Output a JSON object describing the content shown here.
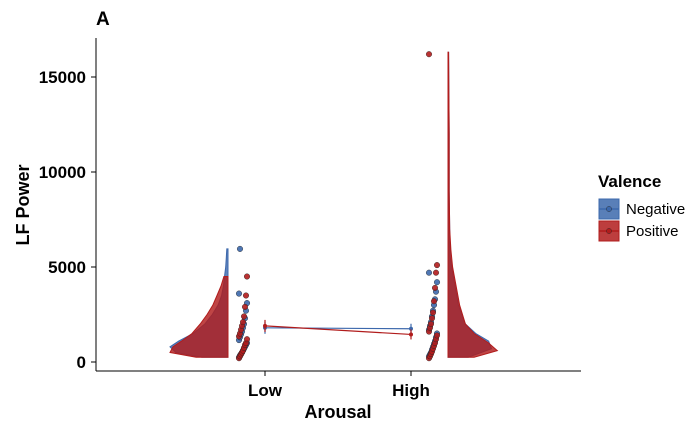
{
  "chart_data": {
    "type": "raincloud",
    "panel_tag": "A",
    "xlabel": "Arousal",
    "ylabel": "LF Power",
    "categories": [
      "Low",
      "High"
    ],
    "ylim": [
      -300,
      17000
    ],
    "yticks": [
      0,
      5000,
      10000,
      15000
    ],
    "ytick_labels": [
      "0",
      "5000",
      "10000",
      "15000"
    ],
    "grid": false,
    "legend": {
      "title": "Valence",
      "placement": "right"
    },
    "series": [
      {
        "name": "Negative",
        "color": "#3C68AC",
        "means": [
          1800,
          1750
        ],
        "points": {
          "Low": [
            250,
            350,
            420,
            500,
            600,
            700,
            800,
            900,
            1000,
            1150,
            1300,
            1450,
            1600,
            1800,
            2000,
            2300,
            2700,
            3100,
            3600,
            5950
          ],
          "High": [
            300,
            400,
            500,
            650,
            800,
            950,
            1100,
            1300,
            1500,
            1700,
            1900,
            2100,
            2400,
            2700,
            3000,
            3300,
            3700,
            4200,
            4700
          ]
        },
        "density": {
          "Low": [
            [
              250,
              0.45
            ],
            [
              500,
              0.9
            ],
            [
              800,
              1.0
            ],
            [
              1100,
              0.85
            ],
            [
              1500,
              0.6
            ],
            [
              2000,
              0.4
            ],
            [
              2500,
              0.27
            ],
            [
              3000,
              0.17
            ],
            [
              3500,
              0.11
            ],
            [
              4000,
              0.08
            ],
            [
              4500,
              0.06
            ],
            [
              5000,
              0.04
            ],
            [
              5500,
              0.03
            ],
            [
              5950,
              0.02
            ]
          ],
          "High": [
            [
              250,
              0.35
            ],
            [
              700,
              0.75
            ],
            [
              1100,
              0.7
            ],
            [
              1500,
              0.48
            ],
            [
              2000,
              0.3
            ],
            [
              3000,
              0.18
            ],
            [
              4000,
              0.12
            ],
            [
              4900,
              0.07
            ],
            [
              5500,
              0.04
            ],
            [
              7000,
              0.03
            ],
            [
              9000,
              0.02
            ],
            [
              12000,
              0.02
            ],
            [
              14000,
              0.015
            ],
            [
              16300,
              0.01
            ]
          ]
        }
      },
      {
        "name": "Positive",
        "color": "#B11C1C",
        "means": [
          1900,
          1450
        ],
        "points": {
          "Low": [
            200,
            300,
            400,
            500,
            600,
            750,
            900,
            1000,
            1200,
            1350,
            1500,
            1700,
            1900,
            2100,
            2400,
            2900,
            3500,
            4500
          ],
          "High": [
            200,
            300,
            420,
            550,
            700,
            850,
            1000,
            1200,
            1400,
            1600,
            1800,
            2000,
            2300,
            2600,
            3200,
            3900,
            4700,
            5100,
            16200
          ]
        },
        "density": {
          "Low": [
            [
              250,
              0.55
            ],
            [
              500,
              1.0
            ],
            [
              800,
              0.95
            ],
            [
              1100,
              0.8
            ],
            [
              1500,
              0.62
            ],
            [
              2000,
              0.48
            ],
            [
              2500,
              0.36
            ],
            [
              3000,
              0.26
            ],
            [
              3500,
              0.19
            ],
            [
              4000,
              0.12
            ],
            [
              4500,
              0.07
            ]
          ],
          "High": [
            [
              250,
              0.45
            ],
            [
              600,
              0.85
            ],
            [
              1000,
              0.7
            ],
            [
              1500,
              0.45
            ],
            [
              2000,
              0.3
            ],
            [
              3000,
              0.2
            ],
            [
              4000,
              0.14
            ],
            [
              5000,
              0.08
            ],
            [
              5900,
              0.05
            ],
            [
              7000,
              0.03
            ],
            [
              9000,
              0.02
            ],
            [
              12000,
              0.02
            ],
            [
              14000,
              0.015
            ],
            [
              16300,
              0.01
            ]
          ]
        }
      }
    ]
  }
}
